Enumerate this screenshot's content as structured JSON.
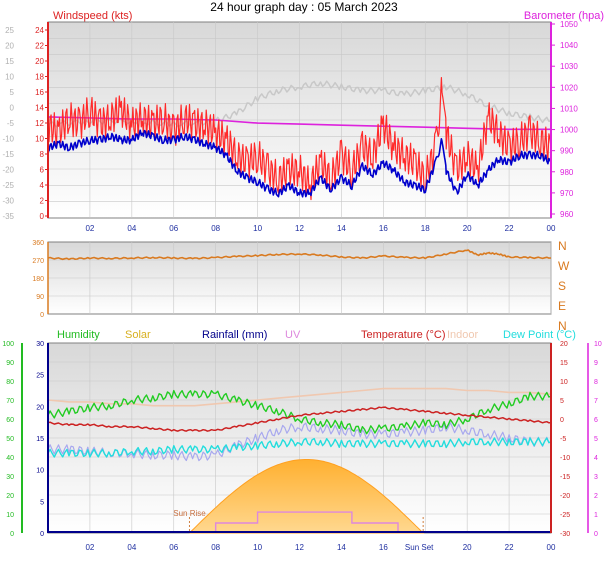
{
  "title": "24 hour graph day : 05 March 2023",
  "x_ticks": [
    "02",
    "04",
    "06",
    "08",
    "10",
    "12",
    "14",
    "16",
    "18",
    "20",
    "22",
    "00"
  ],
  "colors": {
    "wind": "#ff2a2a",
    "wind_avg": "#0000cc",
    "baro": "#dd22dd",
    "indoor_grey": "#c8c8c8",
    "dir": "#d97a20",
    "humidity": "#22cc22",
    "solar": "#ffb030",
    "rain": "#00008b",
    "uv": "#dd88dd",
    "temp": "#cc2222",
    "indoor": "#f0c8b0",
    "dew": "#22dddd",
    "axis_left": "#dd2222",
    "axis_right": "#dd22dd",
    "axis_dir": "#d97a20",
    "axis_x": "#1f2fa0"
  },
  "chart_data": [
    {
      "type": "line",
      "panel": "wind-baro",
      "left_label": "Windspeed (kts)",
      "right_label": "Barometer (hpa)",
      "y_left_ticks": [
        "24",
        "22",
        "20",
        "18",
        "16",
        "14",
        "12",
        "10",
        "8",
        "6",
        "4",
        "2",
        "0"
      ],
      "y_left_ghost_ticks": [
        "25",
        "20",
        "15",
        "10",
        "5",
        "0",
        "-5",
        "-10",
        "-15",
        "-20",
        "-25",
        "-30",
        "-35"
      ],
      "y_right_ticks": [
        "1050",
        "1040",
        "1030",
        "1020",
        "1010",
        "1000",
        "990",
        "980",
        "970",
        "960"
      ],
      "ylim_left": [
        0,
        25
      ],
      "ylim_right": [
        955,
        1050
      ],
      "x_range": [
        0,
        24
      ],
      "series": [
        {
          "key": "gust",
          "x": [
            0,
            0.5,
            1,
            1.5,
            2,
            2.5,
            3,
            3.5,
            4,
            4.5,
            5,
            5.5,
            6,
            6.5,
            7,
            7.5,
            8,
            8.5,
            9,
            9.5,
            10,
            10.5,
            11,
            11.5,
            12,
            12.5,
            13,
            13.5,
            14,
            14.5,
            15,
            15.5,
            16,
            16.5,
            17,
            17.5,
            18,
            18.5,
            18.8,
            19,
            19.5,
            20,
            20.5,
            21,
            21.5,
            22,
            22.5,
            23,
            23.5,
            24
          ],
          "values": [
            12,
            11,
            13,
            12,
            14,
            12,
            13,
            14,
            12,
            13,
            12,
            13,
            11,
            13,
            12,
            12,
            11,
            10,
            8,
            7,
            8,
            6,
            5,
            6,
            6,
            4,
            7,
            5,
            8,
            6,
            9,
            8,
            12,
            9,
            8,
            7,
            5,
            9,
            17,
            11,
            6,
            8,
            6,
            13,
            11,
            9,
            10,
            11,
            10,
            9
          ]
        },
        {
          "key": "avg",
          "x": [
            0,
            0.5,
            1,
            1.5,
            2,
            2.5,
            3,
            3.5,
            4,
            4.5,
            5,
            5.5,
            6,
            6.5,
            7,
            7.5,
            8,
            8.5,
            9,
            9.5,
            10,
            10.5,
            11,
            11.5,
            12,
            12.5,
            13,
            13.5,
            14,
            14.5,
            15,
            15.5,
            16,
            16.5,
            17,
            17.5,
            18,
            18.5,
            18.8,
            19,
            19.5,
            20,
            20.5,
            21,
            21.5,
            22,
            22.5,
            23,
            23.5,
            24
          ],
          "values": [
            9,
            9.5,
            9,
            9.5,
            10,
            10,
            10.5,
            10,
            10,
            11,
            10.5,
            10,
            10,
            10.5,
            10,
            9.5,
            9,
            8,
            6,
            5,
            4.5,
            3.5,
            3,
            4,
            3,
            3,
            5,
            3.5,
            5,
            4,
            6.5,
            5.5,
            7,
            6,
            4.5,
            4,
            3.5,
            7,
            10,
            6,
            3,
            5.5,
            4,
            6,
            7.5,
            7,
            8,
            8,
            8,
            7
          ]
        },
        {
          "key": "baro",
          "x": [
            0,
            2,
            4,
            6,
            8,
            10,
            12,
            14,
            16,
            18,
            20,
            22,
            24
          ],
          "values": [
            1004,
            1003.5,
            1003,
            1003,
            1002.5,
            1001,
            1000.5,
            1000,
            999.5,
            999,
            998.5,
            998,
            998
          ]
        },
        {
          "key": "indoor_bg",
          "x": [
            0,
            2,
            4,
            6,
            8,
            9,
            10,
            11,
            12,
            13,
            14,
            15,
            16,
            17,
            18,
            19,
            20,
            21,
            22,
            23,
            24
          ],
          "values": [
            12,
            12.5,
            12.5,
            12,
            12.5,
            13.5,
            15.5,
            16.5,
            17,
            17.5,
            17,
            16.5,
            16.5,
            16,
            16.5,
            17,
            16,
            14.5,
            13.5,
            13,
            12.5
          ]
        }
      ]
    },
    {
      "type": "line",
      "panel": "direction",
      "y_left_ticks": [
        "360",
        "270",
        "180",
        "90",
        "0"
      ],
      "y_right_ticks": [
        "N",
        "W",
        "S",
        "E",
        "N"
      ],
      "ylim": [
        0,
        360
      ],
      "x_range": [
        0,
        24
      ],
      "series": [
        {
          "key": "direction",
          "x": [
            0,
            1,
            2,
            3,
            4,
            5,
            6,
            7,
            8,
            9,
            10,
            11,
            12,
            13,
            14,
            15,
            16,
            17,
            18,
            19,
            20,
            20.5,
            21,
            21.5,
            22,
            23,
            24
          ],
          "values": [
            280,
            275,
            280,
            278,
            280,
            282,
            280,
            278,
            282,
            288,
            292,
            298,
            300,
            295,
            285,
            280,
            290,
            283,
            280,
            300,
            320,
            295,
            305,
            300,
            285,
            282,
            280
          ]
        }
      ]
    },
    {
      "type": "line",
      "panel": "climate",
      "legend": [
        "Humidity",
        "Solar",
        "Rainfall (mm)",
        "UV",
        "Temperature (°C)",
        "Indoor",
        "Dew Point (°C)"
      ],
      "y_hum_ticks": [
        "100",
        "90",
        "80",
        "70",
        "60",
        "50",
        "40",
        "30",
        "20",
        "10",
        "0"
      ],
      "y_rain_ticks": [
        "30",
        "25",
        "20",
        "15",
        "10",
        "5",
        "0"
      ],
      "y_temp_ticks": [
        "20",
        "15",
        "10",
        "5",
        "0",
        "-5",
        "-10",
        "-15",
        "-20",
        "-25",
        "-30"
      ],
      "y_uv_ticks": [
        "10",
        "9",
        "8",
        "7",
        "6",
        "5",
        "4",
        "3",
        "2",
        "1",
        "0"
      ],
      "ylim_temp": [
        -30,
        20
      ],
      "ylim_hum": [
        0,
        100
      ],
      "x_range": [
        0,
        24
      ],
      "annotations": {
        "sunrise_label": "Sun Rise",
        "sunset_label": "Sun Set",
        "sunrise_x": 6.75,
        "sunset_x": 17.9
      },
      "series": [
        {
          "key": "humidity",
          "x": [
            0,
            1,
            2,
            3,
            4,
            5,
            6,
            7,
            8,
            9,
            10,
            11,
            12,
            13,
            14,
            15,
            16,
            17,
            18,
            19,
            20,
            21,
            22,
            23,
            24
          ],
          "values": [
            62,
            64,
            66,
            67,
            70,
            71,
            73,
            73,
            73,
            70,
            67,
            64,
            60,
            58,
            57,
            54,
            55,
            56,
            58,
            57,
            60,
            65,
            68,
            72,
            72
          ]
        },
        {
          "key": "temperature",
          "x": [
            0,
            1,
            2,
            3,
            4,
            5,
            6,
            7,
            8,
            9,
            10,
            11,
            12,
            13,
            14,
            15,
            16,
            17,
            18,
            19,
            20,
            21,
            22,
            23,
            24
          ],
          "values": [
            -1,
            -1.5,
            -1.5,
            -2,
            -2,
            -2.5,
            -3,
            -3,
            -3,
            -2,
            -1,
            0,
            1,
            1.5,
            2,
            2.5,
            3,
            2.5,
            2,
            1.5,
            1,
            0.5,
            0,
            -0.5,
            -1
          ]
        },
        {
          "key": "indoor",
          "x": [
            0,
            1,
            2,
            3,
            4,
            5,
            6,
            7,
            8,
            9,
            10,
            11,
            12,
            13,
            14,
            15,
            16,
            17,
            18,
            19,
            20,
            21,
            22,
            23,
            24
          ],
          "values": [
            5,
            4.5,
            4.5,
            4,
            4,
            3.5,
            3.5,
            3.5,
            4,
            4.5,
            5,
            5.5,
            6,
            6.5,
            7,
            7.5,
            8,
            8,
            8,
            8,
            7.5,
            7.5,
            7,
            7,
            6.5
          ]
        },
        {
          "key": "indoor_light",
          "x": [
            0,
            1,
            2,
            3,
            4,
            5,
            6,
            7,
            8,
            9,
            10,
            11,
            12,
            13,
            14,
            15,
            16,
            17,
            18,
            19,
            20,
            21,
            22,
            23,
            24
          ],
          "values": [
            -8,
            -8,
            -8.5,
            -9,
            -9,
            -9.5,
            -9.5,
            -10,
            -9.5,
            -7,
            -5,
            -3,
            -2,
            -2.5,
            -3,
            -4,
            -4,
            -3.5,
            -3,
            -2,
            -3,
            -4,
            -5,
            -6,
            -6
          ]
        },
        {
          "key": "dewpoint",
          "x": [
            0,
            1,
            2,
            3,
            4,
            5,
            6,
            7,
            8,
            9,
            10,
            11,
            12,
            13,
            14,
            15,
            16,
            17,
            18,
            19,
            20,
            21,
            22,
            23,
            24
          ],
          "values": [
            -9,
            -9,
            -9,
            -9,
            -8.5,
            -8.5,
            -8,
            -8,
            -8,
            -7.5,
            -7,
            -6.5,
            -6,
            -6,
            -6.5,
            -6.5,
            -6.5,
            -6.5,
            -6.5,
            -6.5,
            -6,
            -6,
            -6,
            -6,
            -6
          ]
        },
        {
          "key": "solar_peak",
          "value": 45
        },
        {
          "key": "uv_peak",
          "value": 2
        }
      ]
    }
  ]
}
